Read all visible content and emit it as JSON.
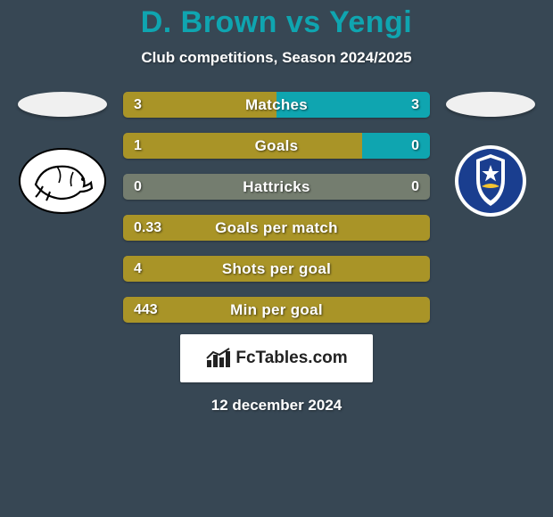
{
  "background_color": "#374754",
  "title": {
    "player1": "D. Brown",
    "vs": "vs",
    "player2": "Yengi",
    "color": "#0fa5b0"
  },
  "subtitle": "Club competitions, Season 2024/2025",
  "left_fill_color": "#a99427",
  "right_fill_color": "#0fa5b0",
  "neutral_fill_color": "#747d6f",
  "stats": [
    {
      "label": "Matches",
      "left_val": "3",
      "right_val": "3",
      "left_pct": 50,
      "mode": "split"
    },
    {
      "label": "Goals",
      "left_val": "1",
      "right_val": "0",
      "left_pct": 78,
      "mode": "split"
    },
    {
      "label": "Hattricks",
      "left_val": "0",
      "right_val": "0",
      "left_pct": 0,
      "mode": "neutral"
    },
    {
      "label": "Goals per match",
      "left_val": "0.33",
      "right_val": "",
      "left_pct": 100,
      "mode": "left-only"
    },
    {
      "label": "Shots per goal",
      "left_val": "4",
      "right_val": "",
      "left_pct": 100,
      "mode": "left-only"
    },
    {
      "label": "Min per goal",
      "left_val": "443",
      "right_val": "",
      "left_pct": 100,
      "mode": "left-only"
    }
  ],
  "brand": "FcTables.com",
  "date_line": "12 december 2024",
  "logos": {
    "left_name": "derby-county-logo",
    "right_name": "portsmouth-logo"
  }
}
